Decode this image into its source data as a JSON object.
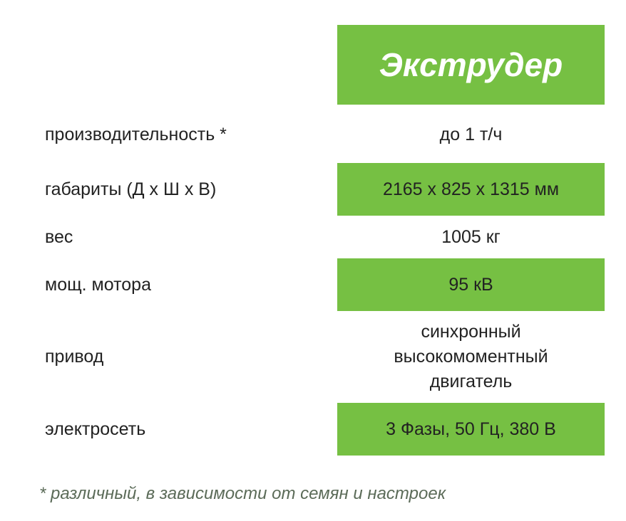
{
  "title": "Экструдер",
  "rows": [
    {
      "label": "производительность *",
      "value": "до 1 т/ч",
      "highlight": false
    },
    {
      "label": "габариты (Д х Ш х В)",
      "value": "2165 х 825 х 1315 мм",
      "highlight": true
    },
    {
      "label": "вес",
      "value": "1005 кг",
      "highlight": false
    },
    {
      "label": "мощ. мотора",
      "value": "95 кВ",
      "highlight": true
    },
    {
      "label": "привод",
      "value": "синхронный высокомоментный двигатель",
      "highlight": false
    },
    {
      "label": "электросеть",
      "value": "3 Фазы, 50 Гц, 380 В",
      "highlight": true
    }
  ],
  "footnote": "* различный, в зависимости от семян и настроек",
  "colors": {
    "accent": "#76c043",
    "text": "#222222",
    "footnote": "#5b6b58"
  }
}
